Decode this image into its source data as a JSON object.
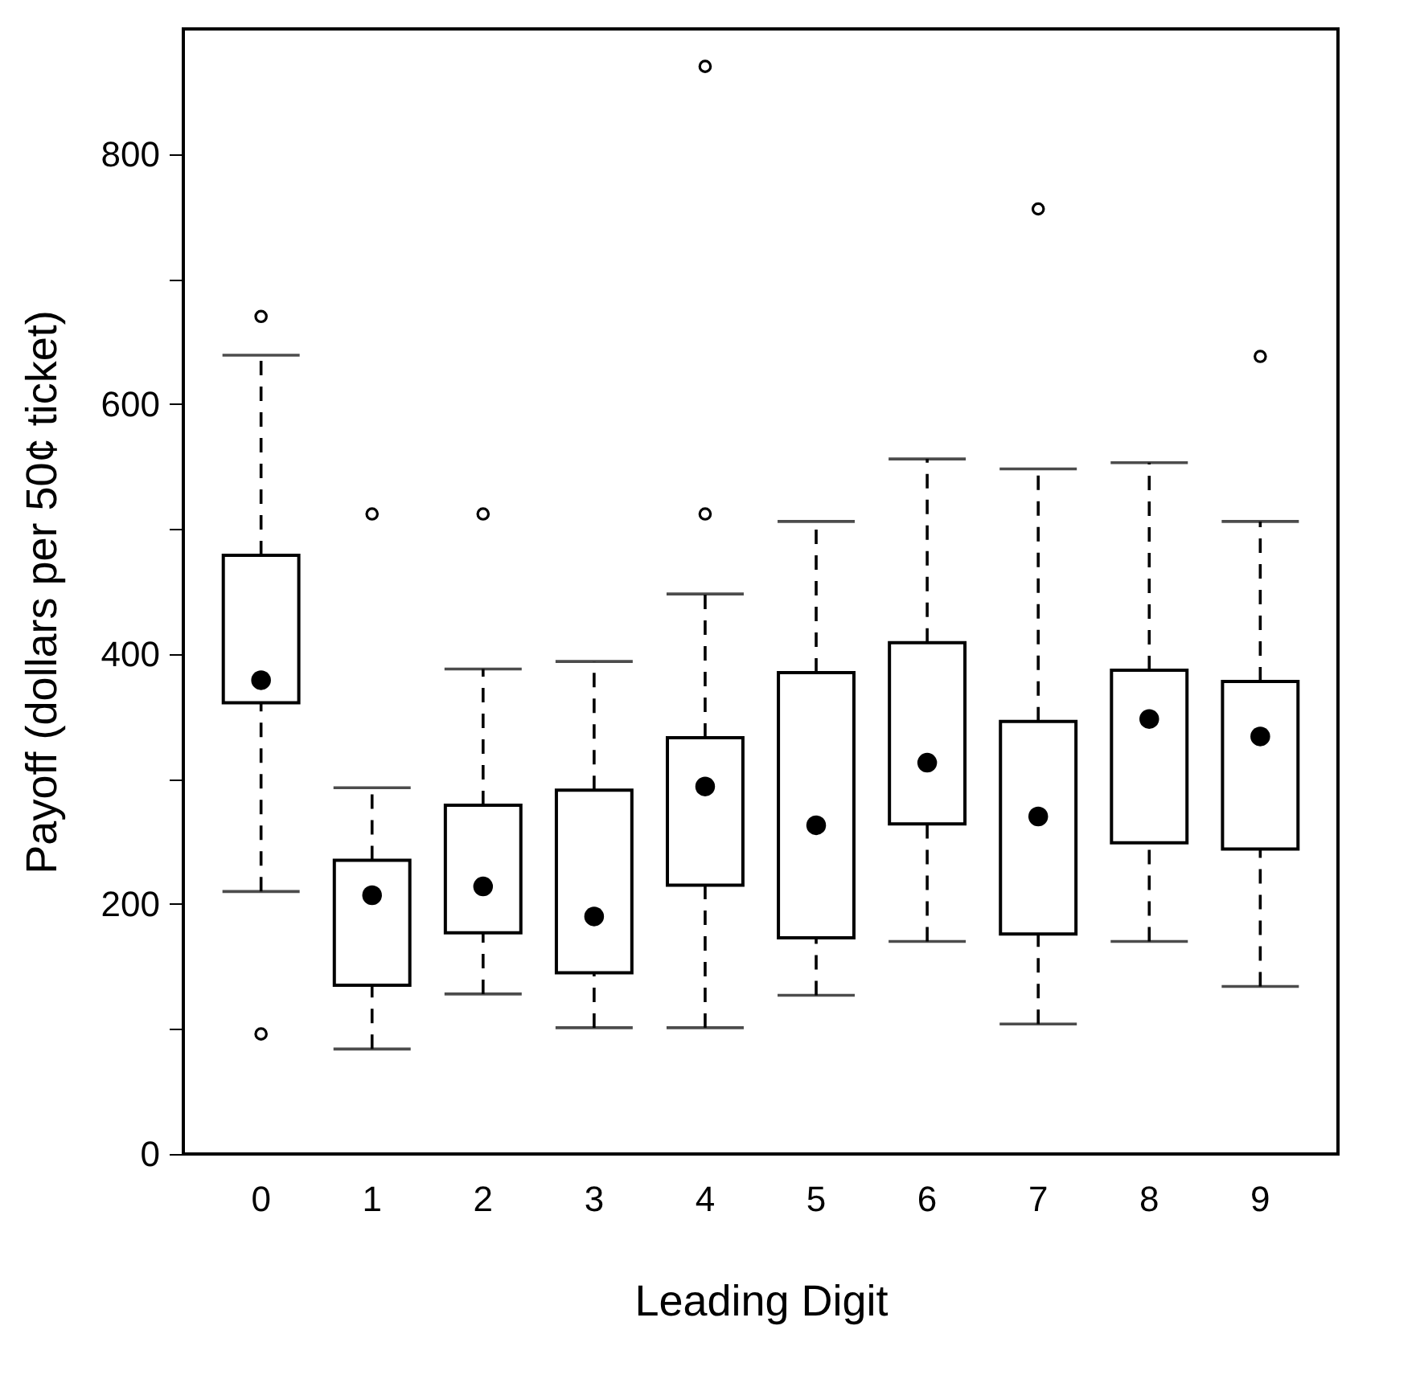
{
  "chart_data": {
    "type": "box",
    "xlabel": "Leading Digit",
    "ylabel": "Payoff (dollars per 50¢ ticket)",
    "categories": [
      "0",
      "1",
      "2",
      "3",
      "4",
      "5",
      "6",
      "7",
      "8",
      "9"
    ],
    "boxes": [
      {
        "low": 210,
        "q1": 361,
        "median": 379,
        "q3": 479,
        "high": 639,
        "outliers": [
          670,
          96
        ]
      },
      {
        "low": 84,
        "q1": 135,
        "median": 207,
        "q3": 235,
        "high": 293,
        "outliers": [
          512
        ]
      },
      {
        "low": 128,
        "q1": 177,
        "median": 214,
        "q3": 279,
        "high": 388,
        "outliers": [
          512
        ]
      },
      {
        "low": 101,
        "q1": 145,
        "median": 190,
        "q3": 291,
        "high": 394
      },
      {
        "low": 101,
        "q1": 215,
        "median": 294,
        "q3": 333,
        "high": 448,
        "outliers": [
          870,
          512
        ]
      },
      {
        "low": 127,
        "q1": 173,
        "median": 263,
        "q3": 385,
        "high": 506
      },
      {
        "low": 170,
        "q1": 264,
        "median": 313,
        "q3": 409,
        "high": 556
      },
      {
        "low": 104,
        "q1": 176,
        "median": 270,
        "q3": 346,
        "high": 548,
        "outliers": [
          756
        ]
      },
      {
        "low": 170,
        "q1": 249,
        "median": 348,
        "q3": 387,
        "high": 553
      },
      {
        "low": 134,
        "q1": 244,
        "median": 334,
        "q3": 378,
        "high": 506,
        "outliers": [
          638
        ]
      }
    ],
    "ylim": [
      0,
      900
    ],
    "yticks": [
      0,
      {
        "value": 100,
        "label": null
      },
      200,
      {
        "value": 300,
        "label": null
      },
      400,
      {
        "value": 500,
        "label": null
      },
      600,
      {
        "value": 700,
        "label": null
      },
      800
    ],
    "line_style": "dashed",
    "grid": false
  }
}
